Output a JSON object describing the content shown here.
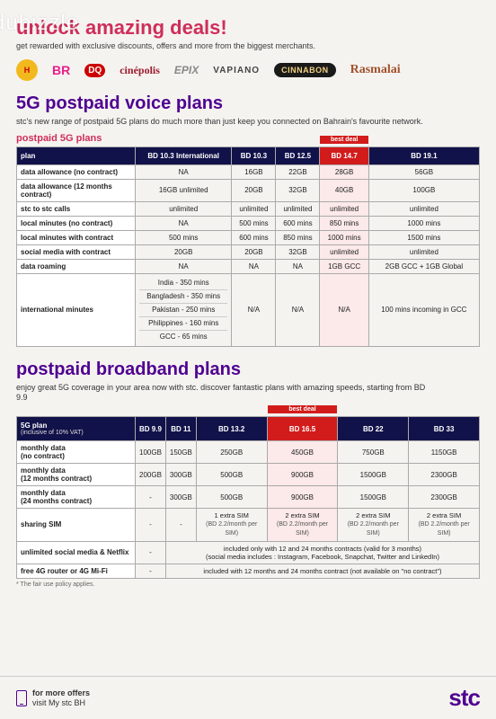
{
  "watermark": "dubizzle",
  "hero": {
    "title": "unlock amazing deals!",
    "subtitle": "get rewarded with exclusive discounts, offers and more from the biggest merchants."
  },
  "brands": [
    "Hardees",
    "BR",
    "DQ",
    "cinépolis",
    "EPIX",
    "VAPIANO",
    "CINNABON",
    "Rasmalai"
  ],
  "voice": {
    "title": "5G postpaid voice plans",
    "subtitle": "stc's new range of postpaid 5G plans do much more than just keep you connected on Bahrain's favourite network.",
    "label": "postpaid 5G plans",
    "best_deal_text": "best deal",
    "header": [
      "plan",
      "BD 10.3 International",
      "BD 10.3",
      "BD 12.5",
      "BD 14.7",
      "BD 19.1"
    ],
    "highlight_col": 4,
    "rows": [
      {
        "h": "data allowance (no contract)",
        "c": [
          "NA",
          "16GB",
          "22GB",
          "28GB",
          "56GB"
        ]
      },
      {
        "h": "data allowance (12 months contract)",
        "c": [
          "16GB unlimited",
          "20GB",
          "32GB",
          "40GB",
          "100GB"
        ]
      },
      {
        "h": "stc to stc calls",
        "c": [
          "unlimited",
          "unlimited",
          "unlimited",
          "unlimited",
          "unlimited"
        ]
      },
      {
        "h": "local minutes (no contract)",
        "c": [
          "NA",
          "500 mins",
          "600 mins",
          "850 mins",
          "1000 mins"
        ]
      },
      {
        "h": "local minutes with contract",
        "c": [
          "500 mins",
          "600 mins",
          "850 mins",
          "1000 mins",
          "1500 mins"
        ]
      },
      {
        "h": "social media with contract",
        "c": [
          "20GB",
          "20GB",
          "32GB",
          "unlimited",
          "unlimited"
        ]
      },
      {
        "h": "data roaming",
        "c": [
          "NA",
          "NA",
          "NA",
          "1GB GCC",
          "2GB GCC + 1GB Global"
        ]
      }
    ],
    "intl_row": {
      "h": "international minutes",
      "list": [
        "India - 350 mins",
        "Bangladesh - 350 mins",
        "Pakistan - 250 mins",
        "Philippines - 160 mins",
        "GCC - 65 mins"
      ],
      "rest": [
        "N/A",
        "N/A",
        "N/A",
        "100 mins incoming in GCC"
      ]
    }
  },
  "broadband": {
    "title": "postpaid broadband plans",
    "subtitle": "enjoy great 5G coverage in your area now with stc. discover fantastic plans with amazing speeds, starting from BD 9.9",
    "best_deal_text": "best deal",
    "header_main": "5G plan",
    "header_note": "(inclusive of 10% VAT)",
    "header": [
      "BD 9.9",
      "BD 11",
      "BD 13.2",
      "BD 16.5",
      "BD 22",
      "BD 33"
    ],
    "highlight_col": 3,
    "rows": [
      {
        "h": "monthly data\n(no contract)",
        "c": [
          "100GB",
          "150GB",
          "250GB",
          "450GB",
          "750GB",
          "1150GB"
        ]
      },
      {
        "h": "monthly data\n(12 months contract)",
        "c": [
          "200GB",
          "300GB",
          "500GB",
          "900GB",
          "1500GB",
          "2300GB"
        ]
      },
      {
        "h": "monthly data\n(24 months contract)",
        "c": [
          "-",
          "300GB",
          "500GB",
          "900GB",
          "1500GB",
          "2300GB"
        ]
      }
    ],
    "sim_row": {
      "h": "sharing SIM",
      "c": [
        "-",
        "-",
        "1 extra SIM",
        "2 extra SIM",
        "2 extra SIM",
        "2 extra SIM"
      ],
      "sub": [
        "",
        "",
        "(BD 2.2/month per SIM)",
        "(BD 2.2/month per SIM)",
        "(BD 2.2/month per SIM)",
        "(BD 2.2/month per SIM)"
      ]
    },
    "social_row": {
      "h": "unlimited social media & Netflix",
      "c": [
        "-",
        "included only with 12 and 24 months contracts (valid for 3 months)\n(social media includes : Instagram, Facebook, Snapchat, Twitter and LinkedIn)"
      ]
    },
    "router_row": {
      "h": "free 4G router or 4G Mi-Fi",
      "c": [
        "-",
        "included with 12 months and 24 months  contract (not available on \"no contract\")"
      ]
    },
    "note": "* The fair use policy applies."
  },
  "footer": {
    "line1": "for more offers",
    "line2": "visit My stc BH",
    "logo": "stc"
  },
  "colors": {
    "magenta": "#cf2e5a",
    "purple": "#4f0091",
    "navy": "#12124a",
    "red": "#d21c1c",
    "bg": "#f5f3f0"
  }
}
